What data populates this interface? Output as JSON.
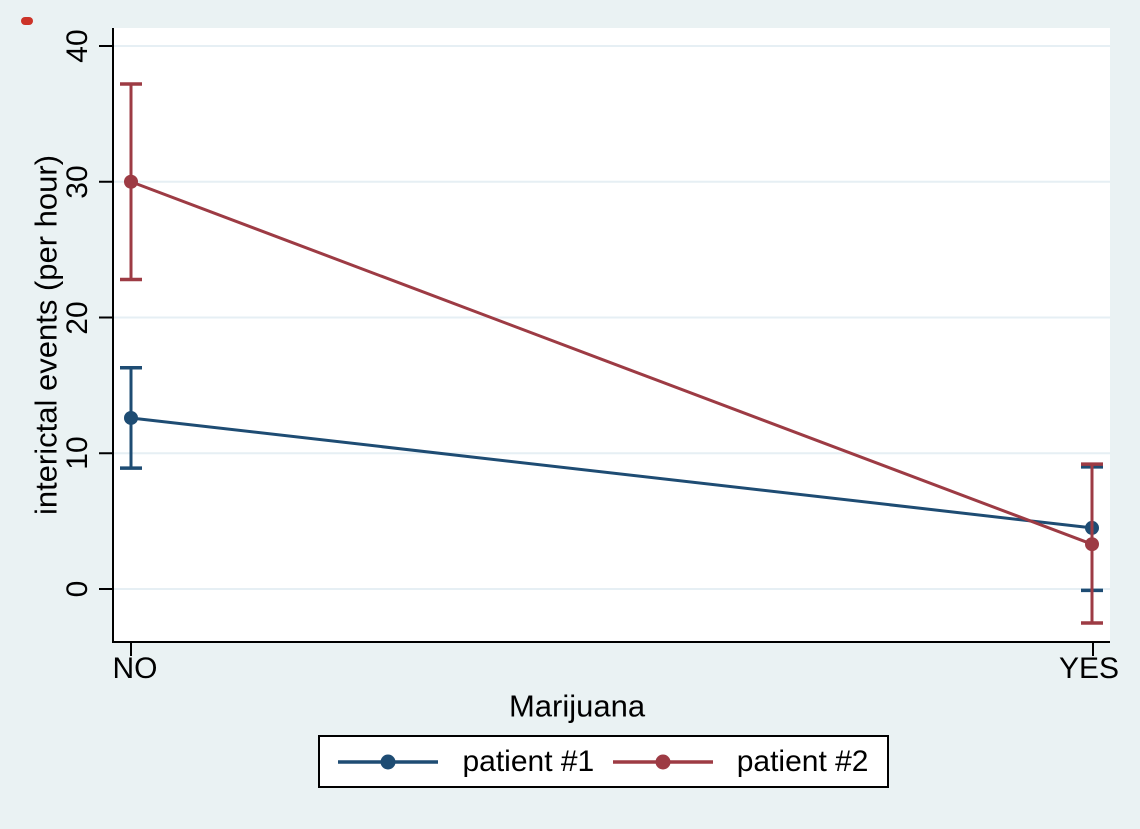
{
  "figure": {
    "background_color": "#EAF2F3",
    "plot_background_color": "#FFFFFF",
    "grid_color": "#E6EFF4",
    "axis_color": "#000000",
    "text_color": "#000000",
    "legend_background_color": "#FFFFFF",
    "legend_border_color": "#000000",
    "artifact_dot_color": "#CC3328"
  },
  "chart_data": {
    "type": "line",
    "title": "",
    "xlabel": "Marijuana",
    "ylabel": "interictal events (per hour)",
    "categories": [
      "NO",
      "YES"
    ],
    "y_ticks": [
      0,
      10,
      20,
      30,
      40
    ],
    "ylim": [
      -3.9,
      41.3
    ],
    "grid": true,
    "error_bars": true,
    "legend_position": "bottom-center",
    "series": [
      {
        "name": "patient #1",
        "color": "#1E4C73",
        "values": [
          12.6,
          4.5
        ],
        "ci_low": [
          8.9,
          -0.1
        ],
        "ci_high": [
          16.3,
          9.0
        ]
      },
      {
        "name": "patient #2",
        "color": "#9D3B44",
        "values": [
          30.0,
          3.3
        ],
        "ci_low": [
          22.8,
          -2.5
        ],
        "ci_high": [
          37.2,
          9.2
        ]
      }
    ]
  }
}
